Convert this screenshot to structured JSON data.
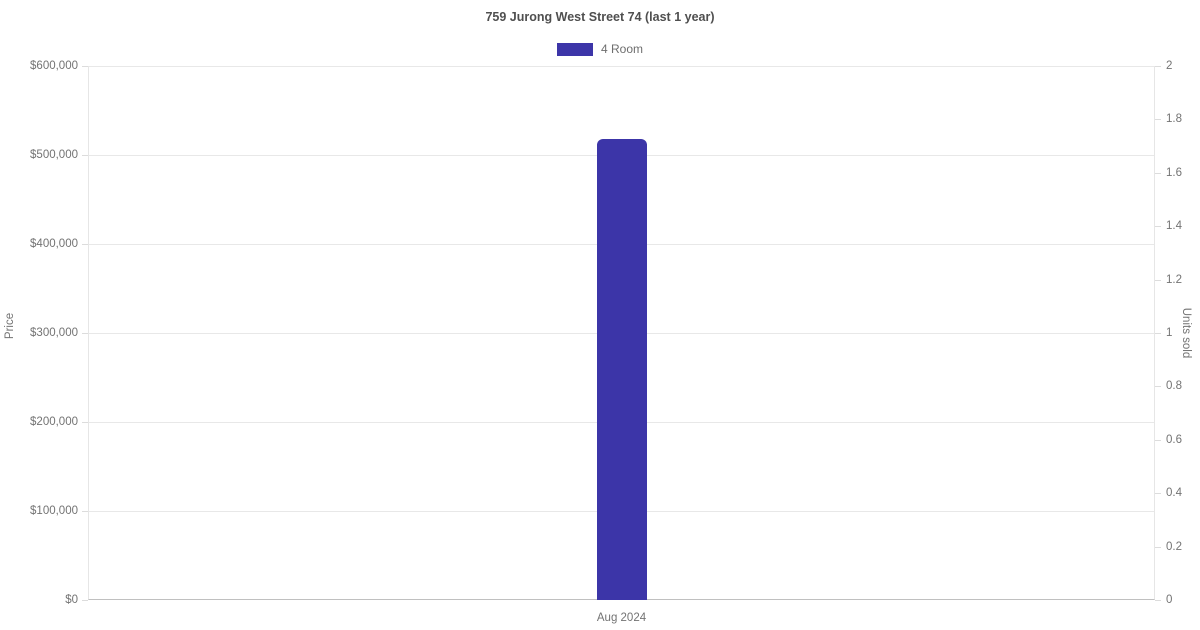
{
  "chart_data": {
    "type": "bar",
    "title": "759 Jurong West Street 74 (last 1 year)",
    "categories": [
      "Aug 2024"
    ],
    "series": [
      {
        "name": "4 Room",
        "color": "#3c35a8",
        "values": [
          518000
        ]
      }
    ],
    "left_axis": {
      "label": "Price",
      "range": [
        0,
        600000
      ],
      "ticks": [
        {
          "value": 600000,
          "label": "$600,000"
        },
        {
          "value": 500000,
          "label": "$500,000"
        },
        {
          "value": 400000,
          "label": "$400,000"
        },
        {
          "value": 300000,
          "label": "$300,000"
        },
        {
          "value": 200000,
          "label": "$200,000"
        },
        {
          "value": 100000,
          "label": "$100,000"
        },
        {
          "value": 0,
          "label": "$0"
        }
      ]
    },
    "right_axis": {
      "label": "Units sold",
      "range": [
        0,
        2
      ],
      "ticks": [
        {
          "value": 2,
          "label": "2"
        },
        {
          "value": 1.8,
          "label": "1.8"
        },
        {
          "value": 1.6,
          "label": "1.6"
        },
        {
          "value": 1.4,
          "label": "1.4"
        },
        {
          "value": 1.2,
          "label": "1.2"
        },
        {
          "value": 1,
          "label": "1"
        },
        {
          "value": 0.8,
          "label": "0.8"
        },
        {
          "value": 0.6,
          "label": "0.6"
        },
        {
          "value": 0.4,
          "label": "0.4"
        },
        {
          "value": 0.2,
          "label": "0.2"
        },
        {
          "value": 0,
          "label": "0"
        }
      ]
    },
    "grid": true,
    "legend_position": "top",
    "colors": {
      "title_text": "#4f4f4f",
      "axis_text": "#737373",
      "gridline": "#e8e8e8",
      "tickmark": "#dcdcdc",
      "axis_line": "#e6e6e6",
      "baseline": "#c0c0c0",
      "background": "#ffffff"
    }
  }
}
